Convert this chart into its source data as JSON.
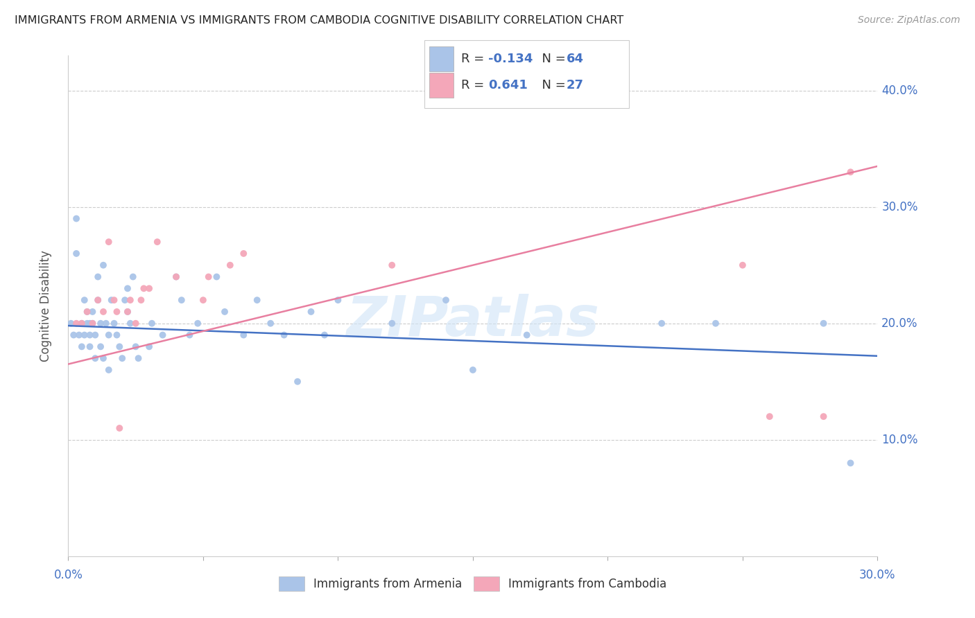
{
  "title": "IMMIGRANTS FROM ARMENIA VS IMMIGRANTS FROM CAMBODIA COGNITIVE DISABILITY CORRELATION CHART",
  "source": "Source: ZipAtlas.com",
  "ylabel": "Cognitive Disability",
  "xmin": 0.0,
  "xmax": 0.3,
  "ymin": 0.0,
  "ymax": 0.43,
  "armenia_color": "#aac4e8",
  "cambodia_color": "#f4a7b9",
  "armenia_R": -0.134,
  "armenia_N": 64,
  "cambodia_R": 0.641,
  "cambodia_N": 27,
  "legend_label_armenia": "Immigrants from Armenia",
  "legend_label_cambodia": "Immigrants from Cambodia",
  "title_color": "#222222",
  "axis_label_color": "#4472c4",
  "watermark": "ZIPatlas",
  "armenia_scatter_x": [
    0.001,
    0.002,
    0.003,
    0.003,
    0.004,
    0.005,
    0.005,
    0.006,
    0.006,
    0.007,
    0.007,
    0.008,
    0.008,
    0.008,
    0.009,
    0.009,
    0.01,
    0.01,
    0.011,
    0.011,
    0.012,
    0.012,
    0.013,
    0.013,
    0.014,
    0.015,
    0.015,
    0.016,
    0.017,
    0.018,
    0.019,
    0.02,
    0.021,
    0.022,
    0.022,
    0.023,
    0.024,
    0.025,
    0.026,
    0.03,
    0.031,
    0.035,
    0.04,
    0.042,
    0.045,
    0.048,
    0.055,
    0.058,
    0.065,
    0.07,
    0.075,
    0.08,
    0.085,
    0.09,
    0.095,
    0.1,
    0.12,
    0.14,
    0.15,
    0.17,
    0.22,
    0.24,
    0.28,
    0.29
  ],
  "armenia_scatter_y": [
    0.2,
    0.19,
    0.29,
    0.26,
    0.19,
    0.18,
    0.2,
    0.22,
    0.19,
    0.2,
    0.21,
    0.2,
    0.19,
    0.18,
    0.2,
    0.21,
    0.17,
    0.19,
    0.22,
    0.24,
    0.2,
    0.18,
    0.17,
    0.25,
    0.2,
    0.19,
    0.16,
    0.22,
    0.2,
    0.19,
    0.18,
    0.17,
    0.22,
    0.21,
    0.23,
    0.2,
    0.24,
    0.18,
    0.17,
    0.18,
    0.2,
    0.19,
    0.24,
    0.22,
    0.19,
    0.2,
    0.24,
    0.21,
    0.19,
    0.22,
    0.2,
    0.19,
    0.15,
    0.21,
    0.19,
    0.22,
    0.2,
    0.22,
    0.16,
    0.19,
    0.2,
    0.2,
    0.2,
    0.08
  ],
  "cambodia_scatter_x": [
    0.003,
    0.005,
    0.007,
    0.009,
    0.011,
    0.013,
    0.015,
    0.017,
    0.018,
    0.019,
    0.022,
    0.023,
    0.025,
    0.027,
    0.028,
    0.03,
    0.033,
    0.04,
    0.05,
    0.052,
    0.06,
    0.065,
    0.12,
    0.25,
    0.26,
    0.28,
    0.29
  ],
  "cambodia_scatter_y": [
    0.2,
    0.2,
    0.21,
    0.2,
    0.22,
    0.21,
    0.27,
    0.22,
    0.21,
    0.11,
    0.21,
    0.22,
    0.2,
    0.22,
    0.23,
    0.23,
    0.27,
    0.24,
    0.22,
    0.24,
    0.25,
    0.26,
    0.25,
    0.25,
    0.12,
    0.12,
    0.33
  ],
  "armenia_line_x": [
    0.0,
    0.3
  ],
  "armenia_line_y": [
    0.198,
    0.172
  ],
  "cambodia_line_x": [
    0.0,
    0.3
  ],
  "cambodia_line_y": [
    0.165,
    0.335
  ],
  "grid_color": "#cccccc",
  "line_blue": "#4472c4",
  "line_pink": "#e87fa0",
  "ytick_vals": [
    0.1,
    0.2,
    0.3,
    0.4
  ],
  "xtick_vals": [
    0.0,
    0.3
  ],
  "xtick_minor_vals": [
    0.05,
    0.1,
    0.15,
    0.2,
    0.25
  ]
}
